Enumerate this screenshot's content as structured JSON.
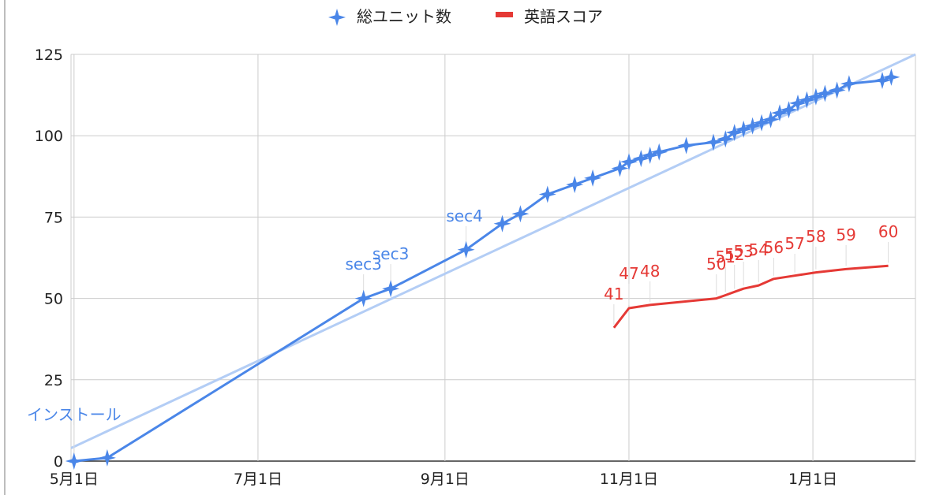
{
  "chart_data": {
    "type": "line",
    "title": "",
    "xlabel": "",
    "ylabel": "",
    "x_ticks": [
      "5月1日",
      "7月1日",
      "9月1日",
      "11月1日",
      "1月1日"
    ],
    "y_ticks": [
      "0",
      "25",
      "50",
      "75",
      "100",
      "125"
    ],
    "ylim": [
      0,
      125
    ],
    "xlim": [
      "2023-04-30",
      "2024-02-04"
    ],
    "grid": true,
    "legend_position": "top",
    "colors": {
      "blue": "#4a86e8",
      "trend": "#b3cdf5",
      "red": "#e53935",
      "grid": "#cccccc"
    },
    "series": [
      {
        "name": "総ユニット数",
        "marker": "x-star",
        "points": [
          [
            "2023-05-01",
            0
          ],
          [
            "2023-05-12",
            1
          ],
          [
            "2023-08-05",
            50
          ],
          [
            "2023-08-14",
            53
          ],
          [
            "2023-09-08",
            65
          ],
          [
            "2023-09-20",
            73
          ],
          [
            "2023-09-26",
            76
          ],
          [
            "2023-10-05",
            82
          ],
          [
            "2023-10-14",
            85
          ],
          [
            "2023-10-20",
            87
          ],
          [
            "2023-10-29",
            90
          ],
          [
            "2023-11-01",
            92
          ],
          [
            "2023-11-05",
            93
          ],
          [
            "2023-11-08",
            94
          ],
          [
            "2023-11-11",
            95
          ],
          [
            "2023-11-20",
            97
          ],
          [
            "2023-11-29",
            98
          ],
          [
            "2023-12-03",
            99
          ],
          [
            "2023-12-06",
            101
          ],
          [
            "2023-12-09",
            102
          ],
          [
            "2023-12-12",
            103
          ],
          [
            "2023-12-15",
            104
          ],
          [
            "2023-12-18",
            105
          ],
          [
            "2023-12-21",
            107
          ],
          [
            "2023-12-24",
            108
          ],
          [
            "2023-12-27",
            110
          ],
          [
            "2023-12-30",
            111
          ],
          [
            "2024-01-02",
            112
          ],
          [
            "2024-01-05",
            113
          ],
          [
            "2024-01-09",
            114
          ],
          [
            "2024-01-13",
            116
          ],
          [
            "2024-01-24",
            117
          ],
          [
            "2024-01-27",
            118
          ]
        ]
      },
      {
        "name": "英語スコア",
        "points": [
          [
            "2023-10-27",
            41
          ],
          [
            "2023-11-01",
            47
          ],
          [
            "2023-11-08",
            48
          ],
          [
            "2023-11-30",
            50
          ],
          [
            "2023-12-03",
            51
          ],
          [
            "2023-12-06",
            52
          ],
          [
            "2023-12-09",
            53
          ],
          [
            "2023-12-14",
            54
          ],
          [
            "2023-12-19",
            56
          ],
          [
            "2023-12-26",
            57
          ],
          [
            "2024-01-02",
            58
          ],
          [
            "2024-01-12",
            59
          ],
          [
            "2024-01-26",
            60
          ]
        ]
      }
    ],
    "trendline": {
      "series": "総ユニット数",
      "points": [
        [
          "2023-04-30",
          4
        ],
        [
          "2024-02-04",
          125
        ]
      ]
    },
    "annotations": {
      "units": [
        {
          "x": "2023-05-01",
          "y": 0,
          "text": "インストール"
        },
        {
          "x": "2023-08-05",
          "y": 50,
          "text": "sec3"
        },
        {
          "x": "2023-08-14",
          "y": 53,
          "text": "sec3"
        },
        {
          "x": "2023-09-08",
          "y": 65,
          "text": "sec4"
        }
      ],
      "score": [
        {
          "x": "2023-10-27",
          "y": 41,
          "text": "41"
        },
        {
          "x": "2023-11-01",
          "y": 47,
          "text": "47"
        },
        {
          "x": "2023-11-08",
          "y": 48,
          "text": "48"
        },
        {
          "x": "2023-11-30",
          "y": 50,
          "text": "50"
        },
        {
          "x": "2023-12-03",
          "y": 51,
          "text": "51"
        },
        {
          "x": "2023-12-06",
          "y": 52,
          "text": "52"
        },
        {
          "x": "2023-12-09",
          "y": 53,
          "text": "53"
        },
        {
          "x": "2023-12-14",
          "y": 54,
          "text": "54"
        },
        {
          "x": "2023-12-19",
          "y": 56,
          "text": "56"
        },
        {
          "x": "2023-12-26",
          "y": 57,
          "text": "57"
        },
        {
          "x": "2024-01-02",
          "y": 58,
          "text": "58"
        },
        {
          "x": "2024-01-12",
          "y": 59,
          "text": "59"
        },
        {
          "x": "2024-01-26",
          "y": 60,
          "text": "60"
        }
      ]
    }
  }
}
